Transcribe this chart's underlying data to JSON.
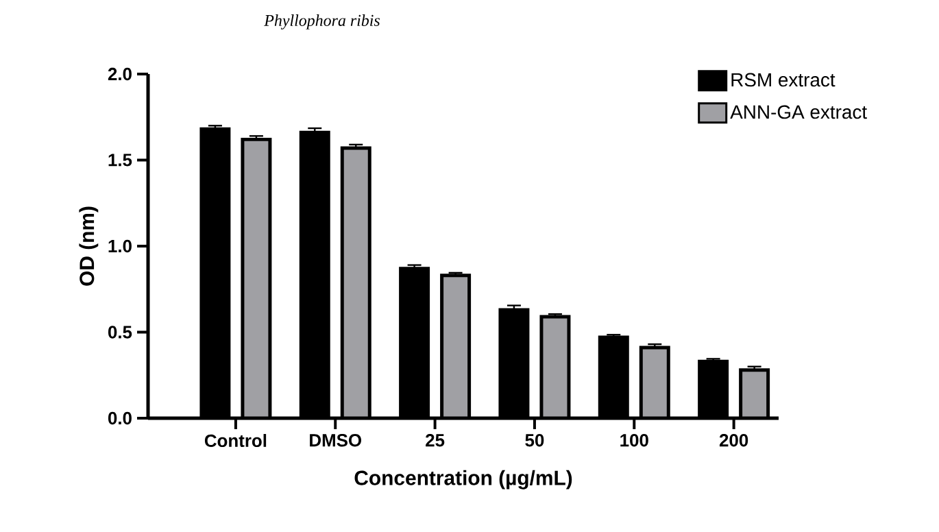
{
  "chart_data": {
    "type": "bar",
    "title": "Phyllophora ribis",
    "xlabel": "Concentration (µg/mL)",
    "ylabel": "OD (nm)",
    "categories": [
      "Control",
      "DMSO",
      "25",
      "50",
      "100",
      "200"
    ],
    "series": [
      {
        "name": "RSM extract",
        "color": "#000000",
        "values": [
          1.68,
          1.66,
          0.87,
          0.63,
          0.47,
          0.33
        ],
        "errors": [
          0.02,
          0.025,
          0.02,
          0.025,
          0.015,
          0.015
        ]
      },
      {
        "name": "ANN-GA extract",
        "color": "#a0a0a4",
        "values": [
          1.62,
          1.57,
          0.83,
          0.59,
          0.41,
          0.28
        ],
        "errors": [
          0.02,
          0.02,
          0.015,
          0.015,
          0.02,
          0.02
        ]
      }
    ],
    "ylim": [
      0,
      2.0
    ],
    "yticks": [
      {
        "value": 0,
        "label": "0.0"
      },
      0.5,
      {
        "value": 1,
        "label": "1.0"
      },
      1.5,
      {
        "value": 2,
        "label": "2.0"
      }
    ],
    "grid": false,
    "legend": "top right"
  }
}
